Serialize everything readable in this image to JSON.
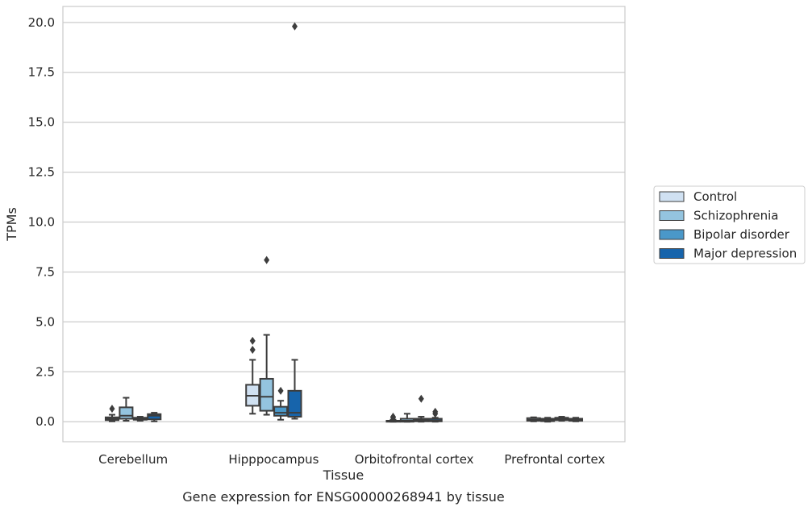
{
  "chart_data": {
    "type": "box",
    "title": "",
    "caption": "Gene expression for ENSG00000268941 by tissue",
    "xlabel": "Tissue",
    "ylabel": "TPMs",
    "ylim": [
      -1.0,
      20.8
    ],
    "yticks": [
      0.0,
      2.5,
      5.0,
      7.5,
      10.0,
      12.5,
      15.0,
      17.5,
      20.0
    ],
    "ytick_labels": [
      "0.0",
      "2.5",
      "5.0",
      "7.5",
      "10.0",
      "12.5",
      "15.0",
      "17.5",
      "20.0"
    ],
    "grid": "horizontal",
    "legend_position": "right",
    "categories": [
      "Cerebellum",
      "Hipppocampus",
      "Orbitofrontal cortex",
      "Prefrontal cortex"
    ],
    "series": [
      {
        "name": "Control",
        "color": "#d0e1f2",
        "boxes": [
          {
            "whislo": 0.02,
            "q1": 0.08,
            "med": 0.15,
            "q3": 0.22,
            "whishi": 0.35,
            "fliers": [
              0.65
            ]
          },
          {
            "whislo": 0.4,
            "q1": 0.8,
            "med": 1.3,
            "q3": 1.85,
            "whishi": 3.1,
            "fliers": [
              3.6,
              4.05
            ]
          },
          {
            "whislo": 0.0,
            "q1": 0.0,
            "med": 0.02,
            "q3": 0.05,
            "whishi": 0.1,
            "fliers": [
              0.2,
              0.25
            ]
          },
          {
            "whislo": 0.02,
            "q1": 0.05,
            "med": 0.1,
            "q3": 0.18,
            "whishi": 0.22,
            "fliers": []
          }
        ]
      },
      {
        "name": "Schizophrenia",
        "color": "#94c4df",
        "boxes": [
          {
            "whislo": 0.05,
            "q1": 0.15,
            "med": 0.3,
            "q3": 0.72,
            "whishi": 1.2,
            "fliers": []
          },
          {
            "whislo": 0.35,
            "q1": 0.55,
            "med": 1.25,
            "q3": 2.15,
            "whishi": 4.35,
            "fliers": [
              8.1
            ]
          },
          {
            "whislo": 0.0,
            "q1": 0.0,
            "med": 0.05,
            "q3": 0.15,
            "whishi": 0.4,
            "fliers": []
          },
          {
            "whislo": 0.0,
            "q1": 0.03,
            "med": 0.08,
            "q3": 0.15,
            "whishi": 0.2,
            "fliers": []
          }
        ]
      },
      {
        "name": "Bipolar disorder",
        "color": "#4a98c9",
        "boxes": [
          {
            "whislo": 0.05,
            "q1": 0.1,
            "med": 0.15,
            "q3": 0.2,
            "whishi": 0.25,
            "fliers": []
          },
          {
            "whislo": 0.1,
            "q1": 0.3,
            "med": 0.45,
            "q3": 0.75,
            "whishi": 1.05,
            "fliers": [
              1.55
            ]
          },
          {
            "whislo": 0.0,
            "q1": 0.02,
            "med": 0.08,
            "q3": 0.15,
            "whishi": 0.25,
            "fliers": [
              1.15
            ]
          },
          {
            "whislo": 0.05,
            "q1": 0.08,
            "med": 0.15,
            "q3": 0.2,
            "whishi": 0.25,
            "fliers": []
          }
        ]
      },
      {
        "name": "Major depression",
        "color": "#1764ab",
        "boxes": [
          {
            "whislo": 0.02,
            "q1": 0.12,
            "med": 0.3,
            "q3": 0.38,
            "whishi": 0.45,
            "fliers": []
          },
          {
            "whislo": 0.15,
            "q1": 0.25,
            "med": 0.45,
            "q3": 1.55,
            "whishi": 3.1,
            "fliers": [
              19.8
            ]
          },
          {
            "whislo": 0.0,
            "q1": 0.02,
            "med": 0.06,
            "q3": 0.15,
            "whishi": 0.2,
            "fliers": [
              0.4,
              0.5
            ]
          },
          {
            "whislo": 0.02,
            "q1": 0.05,
            "med": 0.1,
            "q3": 0.15,
            "whishi": 0.2,
            "fliers": []
          }
        ]
      }
    ]
  }
}
